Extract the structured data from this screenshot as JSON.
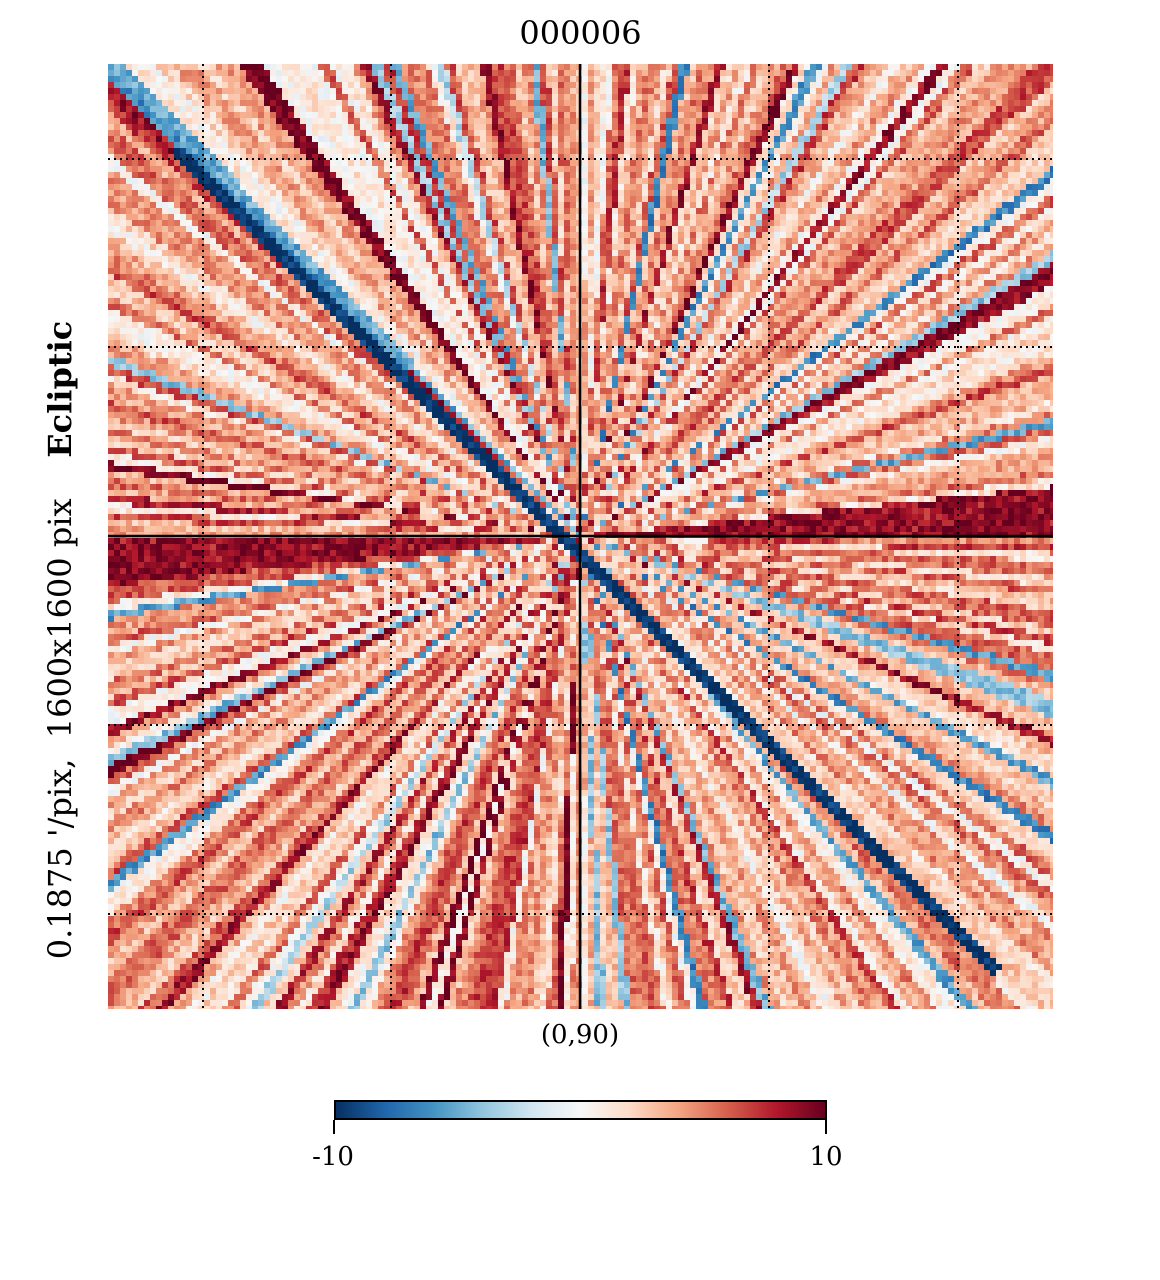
{
  "title": "000006",
  "side_label": {
    "coord": "Ecliptic",
    "resolution": "0.1875 '/pix,",
    "size": "1600x1600 pix"
  },
  "center_label": "(0,90)",
  "colorbar": {
    "min_label": "-10",
    "max_label": "10",
    "min": -10,
    "max": 10,
    "cmap": "RdBu_r",
    "stops": [
      "#053061",
      "#2166ac",
      "#4393c3",
      "#92c5de",
      "#d1e5f0",
      "#f7f7f7",
      "#fddbc7",
      "#f4a582",
      "#d6604d",
      "#b2182b",
      "#67001f"
    ]
  },
  "chart_data": {
    "type": "heatmap",
    "title": "000006",
    "projection": "gnomonic",
    "coord": "Ecliptic",
    "center": "(0,90)",
    "resolution_arcmin_per_pix": 0.1875,
    "map_size": "1600x1600 pix",
    "value_range": [
      -10,
      10
    ],
    "graticule": "dotted",
    "dominant_features": [
      {
        "name": "diagonal stripe (top-left to bottom-right)",
        "value": -10
      },
      {
        "name": "horizontal band right of center",
        "value": 9
      },
      {
        "name": "horizontal band left of center",
        "value": 9
      }
    ]
  }
}
